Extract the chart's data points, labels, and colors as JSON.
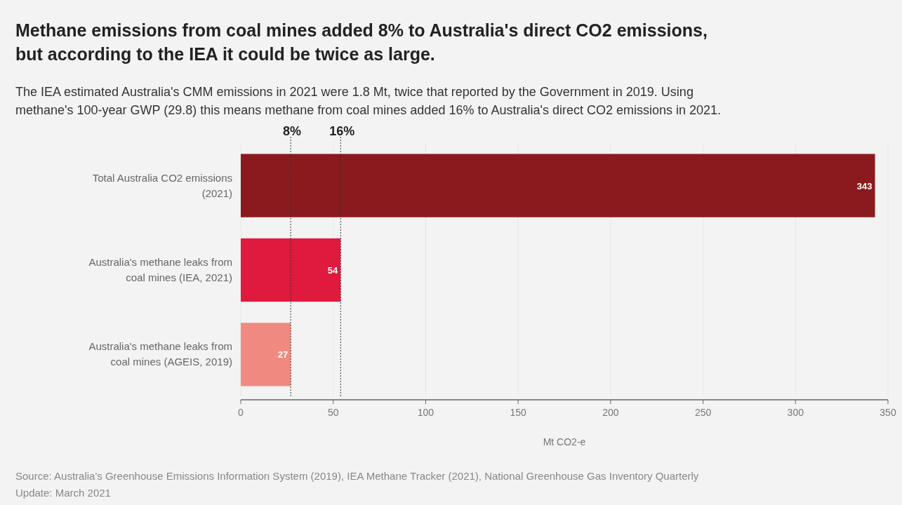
{
  "chart_data": {
    "type": "bar",
    "orientation": "horizontal",
    "title": "Methane emissions from coal mines added 8% to Australia's direct CO2 emissions, but according to the IEA it could be twice as large.",
    "subtitle": "The IEA estimated Australia's CMM emissions in 2021 were 1.8 Mt, twice that reported by the Government in 2019. Using methane's 100-year GWP (29.8) this means methane from coal mines added 16% to Australia's direct CO2 emissions in 2021.",
    "categories": [
      "Total Australia CO2 emissions (2021)",
      "Australia's methane leaks from coal mines (IEA, 2021)",
      "Australia's methane leaks from coal mines (AGEIS, 2019)"
    ],
    "values": [
      343,
      54,
      27
    ],
    "colors": [
      "#8b1a1e",
      "#e0193f",
      "#f08a80"
    ],
    "data_labels": true,
    "xlabel": "Mt CO2-e",
    "xlim": [
      0,
      350
    ],
    "xticks": [
      0,
      50,
      100,
      150,
      200,
      250,
      300,
      350
    ],
    "grid": "x",
    "ref_lines": [
      {
        "axis": "x",
        "value": 27,
        "line_style": "dotted"
      },
      {
        "axis": "x",
        "value": 54,
        "line_style": "dotted"
      }
    ],
    "annotations": [
      "8%",
      "16%",
      "Source: Australia's Greenhouse Emissions Information System (2019), IEA Methane Tracker (2021), National Greenhouse Gas Inventory Quarterly Update: March 2021"
    ]
  }
}
